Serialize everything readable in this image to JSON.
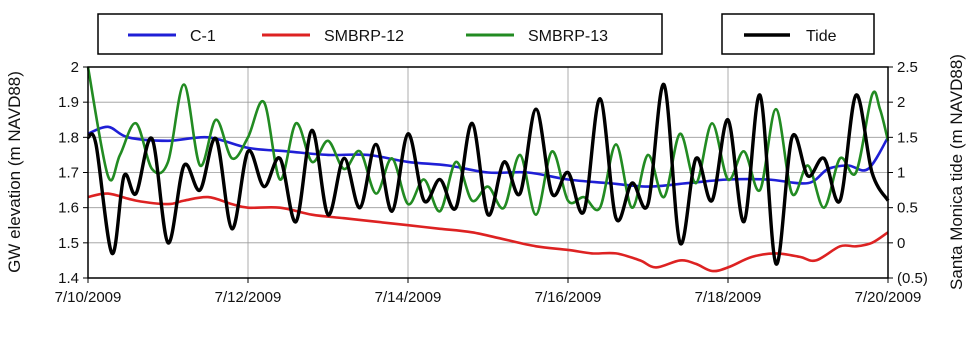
{
  "chart_data": {
    "type": "line",
    "x_ticks": [
      "7/10/2009",
      "7/12/2009",
      "7/14/2009",
      "7/16/2009",
      "7/18/2009",
      "7/20/2009"
    ],
    "x_range_days": [
      "7/10/2009",
      "7/20/2009"
    ],
    "y_left": {
      "label": "GW elevation (m NAVD88)",
      "lim": [
        1.4,
        2.0
      ],
      "ticks": [
        "1.4",
        "1.5",
        "1.6",
        "1.7",
        "1.8",
        "1.9",
        "2"
      ]
    },
    "y_right": {
      "label": "Santa Monica tide (m NAVD88)",
      "lim": [
        -0.5,
        2.5
      ],
      "ticks": [
        "(0.5)",
        "0",
        "0.5",
        "1",
        "1.5",
        "2",
        "2.5"
      ]
    },
    "grid": true,
    "legend": [
      {
        "group": "left",
        "placement": "top-left",
        "entries": [
          "C-1",
          "SMBRP-12",
          "SMBRP-13"
        ]
      },
      {
        "group": "right",
        "placement": "top-right",
        "entries": [
          "Tide"
        ]
      }
    ],
    "series": [
      {
        "name": "C-1",
        "axis": "left",
        "color": "#1f1fd6",
        "x": [
          0,
          0.25,
          0.5,
          1,
          1.5,
          2,
          2.5,
          3,
          3.5,
          4,
          4.5,
          5,
          5.5,
          6,
          6.5,
          7,
          7.5,
          8,
          8.5,
          9,
          9.25,
          9.5,
          9.75,
          10
        ],
        "y": [
          1.81,
          1.83,
          1.8,
          1.79,
          1.8,
          1.77,
          1.76,
          1.75,
          1.75,
          1.73,
          1.72,
          1.7,
          1.7,
          1.68,
          1.67,
          1.66,
          1.67,
          1.68,
          1.68,
          1.67,
          1.71,
          1.72,
          1.71,
          1.8
        ]
      },
      {
        "name": "SMBRP-12",
        "axis": "left",
        "color": "#dd2222",
        "x": [
          0,
          0.25,
          0.6,
          1,
          1.2,
          1.5,
          1.8,
          2,
          2.4,
          2.8,
          3.2,
          3.6,
          4,
          4.4,
          4.8,
          5.2,
          5.6,
          6,
          6.3,
          6.6,
          6.9,
          7.1,
          7.4,
          7.6,
          7.8,
          8,
          8.3,
          8.6,
          8.9,
          9.1,
          9.4,
          9.6,
          9.8,
          10
        ],
        "y": [
          1.63,
          1.64,
          1.62,
          1.61,
          1.62,
          1.63,
          1.61,
          1.6,
          1.6,
          1.58,
          1.57,
          1.56,
          1.55,
          1.54,
          1.53,
          1.51,
          1.49,
          1.48,
          1.47,
          1.47,
          1.45,
          1.43,
          1.45,
          1.44,
          1.42,
          1.43,
          1.46,
          1.47,
          1.46,
          1.45,
          1.49,
          1.49,
          1.5,
          1.53
        ]
      },
      {
        "name": "SMBRP-13",
        "axis": "left",
        "color": "#228b22",
        "x": [
          0,
          0.25,
          0.4,
          0.6,
          0.8,
          1,
          1.2,
          1.4,
          1.6,
          1.8,
          2,
          2.2,
          2.4,
          2.6,
          2.8,
          3,
          3.2,
          3.4,
          3.6,
          3.8,
          4,
          4.2,
          4.4,
          4.6,
          4.8,
          5,
          5.2,
          5.4,
          5.6,
          5.8,
          6,
          6.2,
          6.4,
          6.6,
          6.8,
          7,
          7.2,
          7.4,
          7.6,
          7.8,
          8,
          8.2,
          8.4,
          8.6,
          8.8,
          9,
          9.2,
          9.4,
          9.6,
          9.8,
          9.9,
          10
        ],
        "y": [
          2.0,
          1.69,
          1.75,
          1.84,
          1.71,
          1.73,
          1.95,
          1.72,
          1.85,
          1.74,
          1.8,
          1.9,
          1.68,
          1.84,
          1.73,
          1.79,
          1.71,
          1.76,
          1.64,
          1.74,
          1.61,
          1.68,
          1.59,
          1.73,
          1.62,
          1.66,
          1.6,
          1.75,
          1.58,
          1.76,
          1.62,
          1.63,
          1.6,
          1.78,
          1.6,
          1.75,
          1.63,
          1.81,
          1.67,
          1.84,
          1.68,
          1.76,
          1.65,
          1.88,
          1.64,
          1.72,
          1.6,
          1.74,
          1.7,
          1.92,
          1.88,
          1.79
        ]
      },
      {
        "name": "Tide",
        "axis": "right",
        "color": "#000000",
        "x": [
          0,
          0.1,
          0.3,
          0.45,
          0.6,
          0.8,
          1,
          1.2,
          1.4,
          1.6,
          1.8,
          2,
          2.2,
          2.4,
          2.6,
          2.8,
          3,
          3.2,
          3.4,
          3.6,
          3.8,
          4,
          4.2,
          4.4,
          4.6,
          4.8,
          5,
          5.2,
          5.4,
          5.6,
          5.8,
          6,
          6.2,
          6.4,
          6.6,
          6.8,
          7,
          7.2,
          7.4,
          7.6,
          7.8,
          8,
          8.2,
          8.4,
          8.6,
          8.8,
          9,
          9.2,
          9.4,
          9.6,
          9.8,
          10
        ],
        "y": [
          1.5,
          1.4,
          -0.15,
          0.95,
          0.7,
          1.48,
          0.0,
          1.1,
          0.75,
          1.48,
          0.2,
          1.3,
          0.8,
          1.2,
          0.3,
          1.6,
          0.4,
          1.2,
          0.5,
          1.4,
          0.45,
          1.55,
          0.6,
          0.9,
          0.5,
          1.7,
          0.4,
          1.15,
          0.7,
          1.9,
          0.7,
          1.0,
          0.45,
          2.05,
          0.35,
          0.85,
          0.55,
          2.25,
          0.0,
          1.2,
          0.6,
          1.75,
          0.3,
          2.1,
          -0.3,
          1.5,
          0.95,
          1.2,
          0.6,
          2.1,
          1.0,
          0.6
        ]
      }
    ]
  }
}
